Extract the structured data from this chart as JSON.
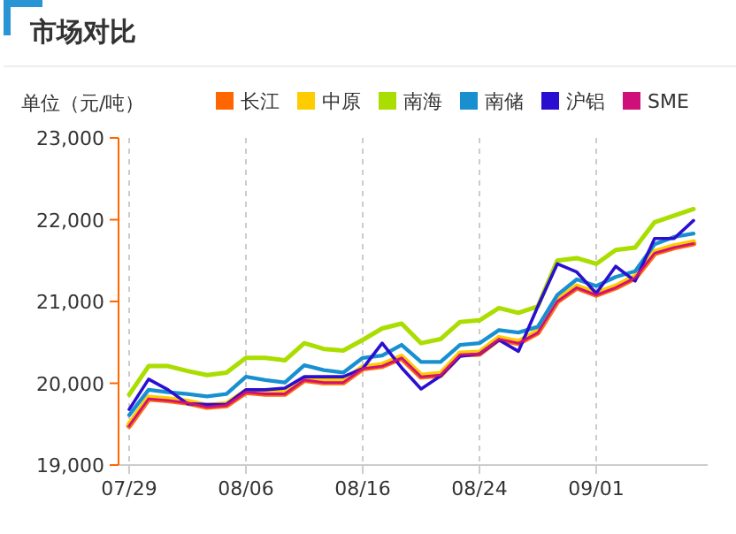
{
  "chart_data": {
    "type": "line",
    "title": "市场对比",
    "ylabel": "单位（元/吨）",
    "categories": [
      "07/29",
      null,
      null,
      null,
      null,
      null,
      "08/06",
      null,
      null,
      null,
      null,
      null,
      "08/16",
      null,
      null,
      null,
      null,
      null,
      "08/24",
      null,
      null,
      null,
      null,
      null,
      "09/01",
      null,
      null,
      null,
      null,
      null
    ],
    "series": [
      {
        "name": "长江",
        "color": "#ff6600",
        "values": [
          19480,
          19810,
          19790,
          19760,
          19710,
          19730,
          19890,
          19870,
          19870,
          20040,
          20010,
          20010,
          20180,
          20210,
          20310,
          20080,
          20100,
          20350,
          20360,
          20540,
          20490,
          20620,
          21000,
          21170,
          21080,
          21170,
          21290,
          21590,
          21660,
          21710
        ]
      },
      {
        "name": "中原",
        "color": "#ffcc00",
        "values": [
          19500,
          19830,
          19810,
          19780,
          19730,
          19750,
          19910,
          19890,
          19890,
          20060,
          20030,
          20030,
          20200,
          20230,
          20330,
          20100,
          20120,
          20370,
          20380,
          20560,
          20510,
          20640,
          21020,
          21190,
          21100,
          21190,
          21310,
          21610,
          21680,
          21730
        ]
      },
      {
        "name": "南海",
        "color": "#aadd00",
        "values": [
          19860,
          20210,
          20210,
          20150,
          20100,
          20130,
          20310,
          20310,
          20280,
          20490,
          20420,
          20400,
          20530,
          20670,
          20730,
          20490,
          20540,
          20750,
          20770,
          20920,
          20860,
          20940,
          21500,
          21530,
          21460,
          21630,
          21660,
          21970,
          22050,
          22130
        ]
      },
      {
        "name": "南储",
        "color": "#1890d0",
        "values": [
          19610,
          19920,
          19890,
          19870,
          19840,
          19870,
          20080,
          20040,
          20010,
          20220,
          20160,
          20130,
          20310,
          20340,
          20470,
          20260,
          20260,
          20470,
          20490,
          20650,
          20620,
          20690,
          21080,
          21270,
          21190,
          21300,
          21370,
          21700,
          21790,
          21830
        ]
      },
      {
        "name": "沪铝",
        "color": "#2b0fd0",
        "values": [
          19680,
          20050,
          19920,
          19750,
          19740,
          19740,
          19920,
          19920,
          19940,
          20080,
          20080,
          20080,
          20180,
          20490,
          20190,
          19930,
          20090,
          20330,
          20360,
          20530,
          20390,
          20940,
          21460,
          21360,
          21100,
          21430,
          21250,
          21770,
          21770,
          21990
        ]
      },
      {
        "name": "SME",
        "color": "#d0107a",
        "values": [
          19480,
          19810,
          19790,
          19760,
          19710,
          19730,
          19890,
          19870,
          19870,
          20040,
          20010,
          20010,
          20180,
          20210,
          20310,
          20080,
          20100,
          20350,
          20360,
          20540,
          20490,
          20620,
          21000,
          21170,
          21080,
          21170,
          21290,
          21590,
          21660,
          21710
        ]
      }
    ],
    "ylim": [
      19000,
      23000
    ],
    "yticks": [
      {
        "value": 19000,
        "label": "19,000"
      },
      {
        "value": 20000,
        "label": "20,000"
      },
      {
        "value": 21000,
        "label": "21,000"
      },
      {
        "value": 22000,
        "label": "22,000"
      },
      {
        "value": 23000,
        "label": "23,000"
      }
    ],
    "grid": "x",
    "legend": "top",
    "marker": "none",
    "line_style": "solid"
  }
}
